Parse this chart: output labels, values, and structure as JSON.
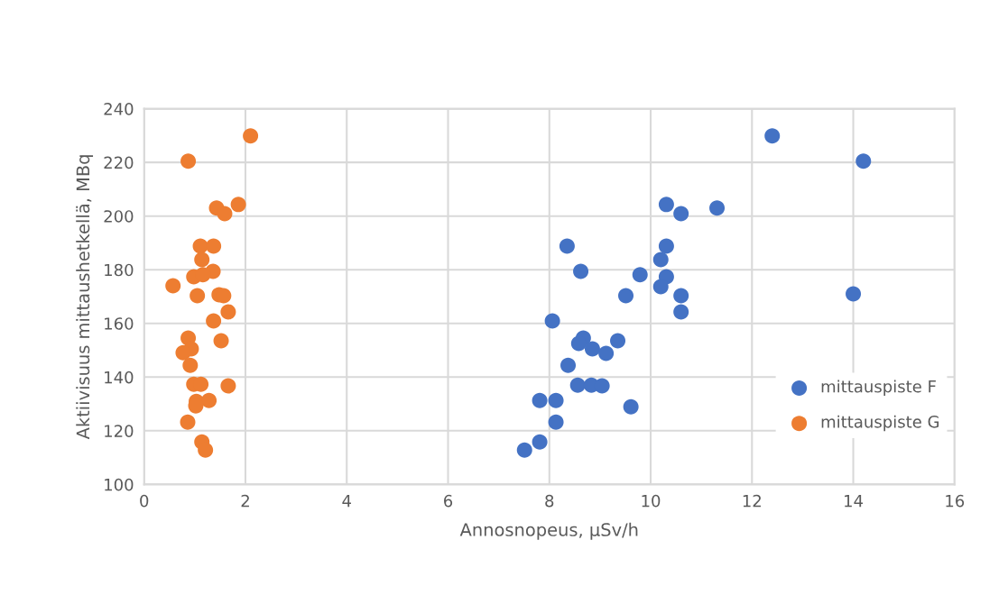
{
  "chart_data": {
    "type": "scatter",
    "xlabel": "Annosnopeus, µSv/h",
    "ylabel": "Aktiivisuus mittaushetkellä, MBq",
    "xlim": [
      0,
      16
    ],
    "xticks": [
      0,
      2,
      4,
      6,
      8,
      10,
      12,
      14,
      16
    ],
    "ylim": [
      100,
      240
    ],
    "yticks": [
      100,
      120,
      140,
      160,
      180,
      200,
      220,
      240
    ],
    "grid": true,
    "legend": "right",
    "marker": "circle",
    "series": [
      {
        "name": "mittauspiste F",
        "color": "#4472c4",
        "x": [
          10.31,
          10.6,
          11.31,
          8.35,
          10.31,
          10.2,
          8.62,
          9.79,
          10.31,
          10.2,
          9.51,
          10.6,
          10.6,
          8.06,
          8.67,
          8.58,
          9.35,
          8.85,
          9.12,
          8.37,
          8.56,
          8.83,
          9.04,
          7.81,
          8.13,
          9.61,
          8.13,
          7.81,
          7.51,
          12.4,
          14.2,
          14.0
        ],
        "values": [
          204.3,
          200.9,
          203.0,
          188.8,
          188.8,
          183.8,
          179.4,
          178.1,
          177.4,
          173.7,
          170.3,
          170.3,
          164.3,
          160.9,
          154.5,
          152.5,
          153.5,
          150.5,
          148.8,
          144.4,
          137.0,
          137.0,
          136.7,
          131.3,
          131.3,
          128.9,
          123.2,
          115.8,
          112.8,
          229.9,
          220.5,
          171.0
        ]
      },
      {
        "name": "mittauspiste G",
        "color": "#ed7d31",
        "x": [
          2.1,
          0.87,
          1.43,
          1.86,
          1.59,
          1.11,
          1.37,
          1.14,
          1.36,
          0.98,
          1.16,
          0.57,
          1.05,
          1.48,
          1.57,
          1.66,
          1.37,
          0.87,
          1.52,
          0.93,
          0.77,
          0.91,
          0.98,
          1.12,
          1.66,
          1.03,
          1.28,
          1.02,
          0.86,
          1.14,
          1.21
        ],
        "values": [
          229.9,
          220.5,
          203.0,
          204.3,
          200.9,
          188.8,
          188.8,
          183.8,
          179.4,
          177.4,
          178.1,
          174.0,
          170.3,
          170.7,
          170.3,
          164.3,
          160.9,
          154.5,
          153.5,
          150.5,
          149.1,
          144.4,
          137.3,
          137.3,
          136.7,
          130.9,
          131.3,
          129.3,
          123.2,
          115.8,
          112.8
        ]
      }
    ]
  }
}
